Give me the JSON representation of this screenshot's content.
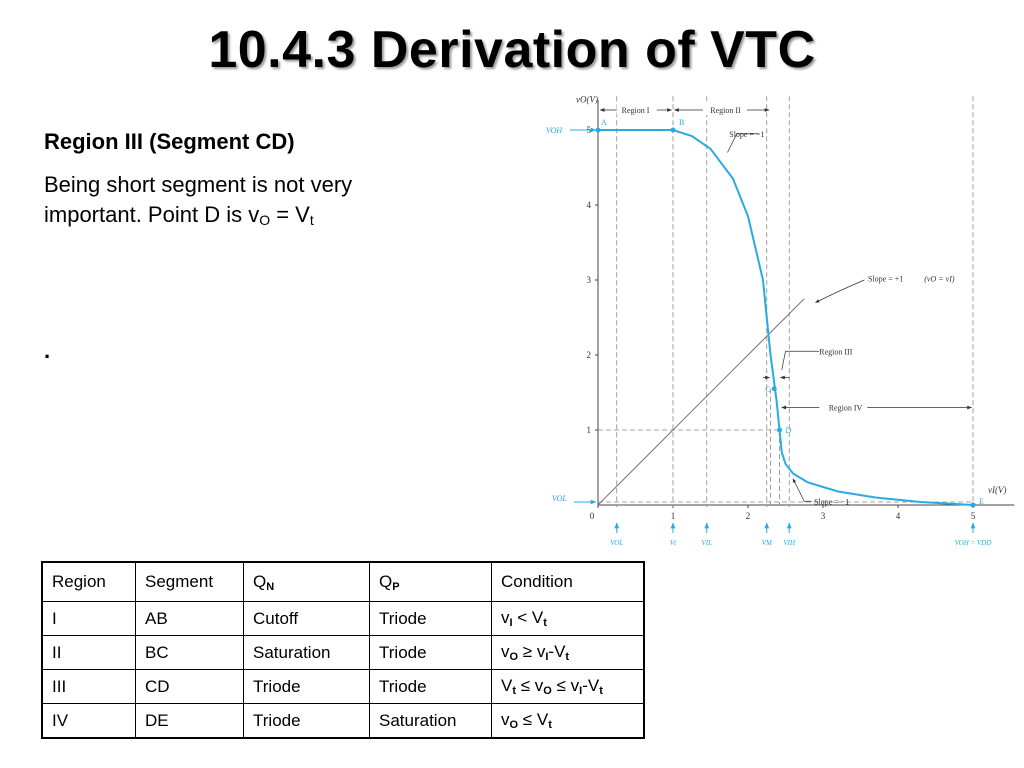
{
  "slide": {
    "title": "10.4.3 Derivation of VTC",
    "heading": "Region III (Segment CD)",
    "body_line1": "Being short segment is not very",
    "body_line2_pre": "important. Point D is v",
    "body_sub1": "O",
    "body_mid": " = V",
    "body_sub2": "t",
    "dot": "."
  },
  "table": {
    "headers": [
      {
        "main": "Region",
        "sub": ""
      },
      {
        "main": "Segment",
        "sub": ""
      },
      {
        "main": "Q",
        "sub": "N"
      },
      {
        "main": "Q",
        "sub": "P"
      },
      {
        "main": "Condition",
        "sub": ""
      }
    ],
    "rows": [
      {
        "cells": [
          "I",
          "AB",
          "Cutoff",
          "Triode"
        ],
        "cond": [
          [
            "v",
            "I"
          ],
          [
            " < V",
            "t"
          ]
        ]
      },
      {
        "cells": [
          "II",
          "BC",
          "Saturation",
          "Triode"
        ],
        "cond": [
          [
            "v",
            "O"
          ],
          [
            " ≥ v",
            "I"
          ],
          [
            "-V",
            "t"
          ]
        ]
      },
      {
        "cells": [
          "III",
          "CD",
          "Triode",
          "Triode"
        ],
        "cond": [
          [
            "V",
            "t"
          ],
          [
            " ≤ v",
            "O"
          ],
          [
            " ≤ v",
            "I"
          ],
          [
            "-V",
            "t"
          ]
        ]
      },
      {
        "cells": [
          "IV",
          "DE",
          "Triode",
          "Saturation"
        ],
        "cond": [
          [
            "v",
            "O"
          ],
          [
            " ≤ V",
            "t"
          ]
        ]
      }
    ]
  },
  "chart_data": {
    "type": "line",
    "xlabel": "vI(V)",
    "ylabel": "vO(V)",
    "xlim": [
      0,
      5
    ],
    "ylim": [
      0,
      5
    ],
    "x_ticks": [
      "0",
      "1",
      "2",
      "3",
      "4",
      "5"
    ],
    "y_ticks": [
      "1",
      "2",
      "3",
      "4",
      "5"
    ],
    "series": [
      {
        "x": [
          0,
          1.0,
          1.25,
          1.5,
          1.8,
          2.0,
          2.2,
          2.3,
          2.38,
          2.42,
          2.45,
          2.5,
          2.6,
          2.8,
          3.2,
          3.7,
          4.3,
          5.0
        ],
        "y": [
          5,
          5,
          4.92,
          4.75,
          4.35,
          3.85,
          3.0,
          2.0,
          1.4,
          1.0,
          0.7,
          0.55,
          0.42,
          0.3,
          0.18,
          0.1,
          0.04,
          0.0
        ]
      }
    ],
    "reference_line": {
      "x": [
        0,
        2.75
      ],
      "y": [
        0,
        2.75
      ]
    },
    "points": [
      {
        "label": "A",
        "x": 0,
        "y": 5
      },
      {
        "label": "B",
        "x": 1.0,
        "y": 5
      },
      {
        "label": "C",
        "x": 2.35,
        "y": 1.55
      },
      {
        "label": "D",
        "x": 2.42,
        "y": 1.0
      },
      {
        "label": "E",
        "x": 5.0,
        "y": 0.0
      }
    ],
    "annotations": {
      "voh": "VOH",
      "vol": "VOL",
      "region1": "Region I",
      "region2": "Region II",
      "region3": "Region III",
      "region4": "Region IV",
      "slope_neg1_top": "Slope = −1",
      "slope_pos1": "Slope = +1",
      "slope_pos1_note": "(vO = vI)",
      "slope_neg1_bottom": "Slope = −1",
      "bottom_labels": [
        "VOL",
        "Vt",
        "VIL",
        "VM",
        "VIH",
        "VOH = VDD"
      ]
    },
    "colors": {
      "curve": "#29abe2",
      "accent": "#29abe2",
      "grid": "#888888"
    }
  }
}
